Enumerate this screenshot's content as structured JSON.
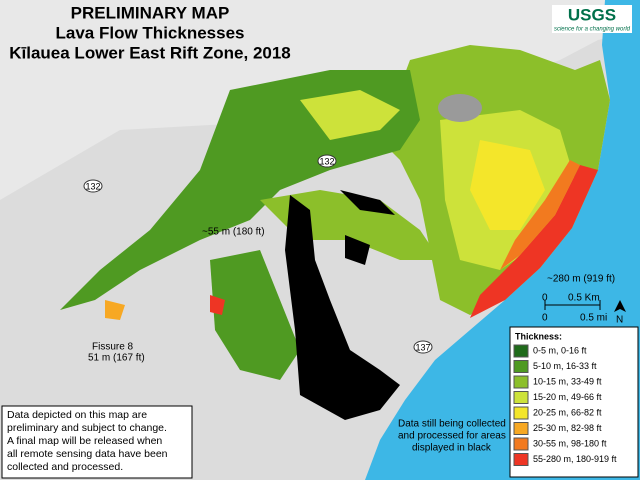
{
  "header": {
    "title_lines": [
      "PRELIMINARY MAP",
      "Lava Flow Thicknesses",
      "Kīlauea Lower East Rift Zone, 2018"
    ]
  },
  "logo": {
    "name": "USGS",
    "tagline": "science for a changing world"
  },
  "roads": [
    "132",
    "132",
    "137"
  ],
  "annotations": {
    "peak_west": "~55 m (180 ft)",
    "fissure": [
      "Fissure 8",
      "51 m (167 ft)"
    ],
    "coast": "~280 m (919 ft)",
    "black_area": [
      "Data still being collected",
      "and processed for areas",
      "displayed in black"
    ]
  },
  "scale_bar": {
    "km": [
      "0",
      "0.5 Km"
    ],
    "mi": [
      "0",
      "0.5 mi"
    ],
    "north": "N"
  },
  "legend": {
    "title": "Thickness:",
    "items": [
      {
        "label": "0-5 m, 0-16 ft",
        "color": "#1f6b1a"
      },
      {
        "label": "5-10 m, 16-33 ft",
        "color": "#4f9a22"
      },
      {
        "label": "10-15 m, 33-49 ft",
        "color": "#8cbf2a"
      },
      {
        "label": "15-20 m, 49-66 ft",
        "color": "#cde23a"
      },
      {
        "label": "20-25 m, 66-82 ft",
        "color": "#f4e62a"
      },
      {
        "label": "25-30 m, 82-98 ft",
        "color": "#f7a823"
      },
      {
        "label": "30-55 m, 98-180 ft",
        "color": "#f27a1f"
      },
      {
        "label": "55-280 m, 180-919 ft",
        "color": "#ee3524"
      }
    ]
  },
  "notes": [
    "Data depicted on this map are",
    "preliminary and subject to change.",
    "A final map will be released when",
    "all remote sensing data have been",
    "collected and processed."
  ]
}
